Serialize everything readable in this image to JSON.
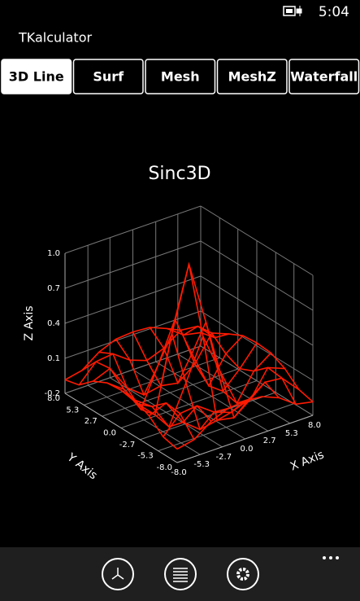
{
  "status": {
    "time": "5:04"
  },
  "app": {
    "title": "TKalculator"
  },
  "tabs": [
    "3D Line",
    "Surf",
    "Mesh",
    "MeshZ",
    "Waterfall"
  ],
  "chart_data": {
    "type": "surface-mesh",
    "title": "Sinc3D",
    "xlabel": "X Axis",
    "ylabel": "Y Axis",
    "zlabel": "Z Axis",
    "color": "#ff1a00",
    "x": [
      -8,
      -6,
      -4,
      -2,
      0,
      2,
      4,
      6,
      8
    ],
    "y": [
      -8,
      -6,
      -4,
      -2,
      0,
      2,
      4,
      6,
      8
    ],
    "z": [
      [
        -0.084,
        -0.054,
        0.052,
        0.112,
        0.124,
        0.112,
        0.052,
        -0.054,
        -0.084
      ],
      [
        -0.054,
        0.095,
        0.111,
        0.007,
        -0.047,
        0.007,
        0.111,
        0.095,
        -0.054
      ],
      [
        0.052,
        0.111,
        -0.104,
        -0.217,
        -0.189,
        -0.217,
        -0.104,
        0.111,
        0.052
      ],
      [
        0.112,
        0.007,
        -0.217,
        0.109,
        0.455,
        0.109,
        -0.217,
        0.007,
        0.112
      ],
      [
        0.124,
        -0.047,
        -0.189,
        0.455,
        1,
        0.455,
        -0.189,
        -0.047,
        0.124
      ],
      [
        0.112,
        0.007,
        -0.217,
        0.109,
        0.455,
        0.109,
        -0.217,
        0.007,
        0.112
      ],
      [
        0.052,
        0.111,
        -0.104,
        -0.217,
        -0.189,
        -0.217,
        -0.104,
        0.111,
        0.052
      ],
      [
        -0.054,
        0.095,
        0.111,
        0.007,
        -0.047,
        0.007,
        0.111,
        0.095,
        -0.054
      ],
      [
        -0.084,
        -0.054,
        0.052,
        0.112,
        0.124,
        0.112,
        0.052,
        -0.054,
        -0.084
      ]
    ],
    "xlim": [
      -8,
      8
    ],
    "ylim": [
      -8,
      8
    ],
    "zlim": [
      -0.2,
      1.0
    ],
    "xticks": [
      {
        "value": -8,
        "label": "-8.0"
      },
      {
        "value": -5.3,
        "label": "-5.3"
      },
      {
        "value": -2.7,
        "label": "-2.7"
      },
      {
        "value": 0,
        "label": "0.0"
      },
      {
        "value": 2.7,
        "label": "2.7"
      },
      {
        "value": 5.3,
        "label": "5.3"
      },
      {
        "value": 8,
        "label": "8.0"
      }
    ],
    "yticks": [
      {
        "value": -8,
        "label": "-8.0"
      },
      {
        "value": -5.3,
        "label": "-5.3"
      },
      {
        "value": -2.7,
        "label": "-2.7"
      },
      {
        "value": 0,
        "label": "0.0"
      },
      {
        "value": 2.7,
        "label": "2.7"
      },
      {
        "value": 5.3,
        "label": "5.3"
      },
      {
        "value": 8,
        "label": "8.0"
      }
    ],
    "zticks": [
      {
        "value": -0.2,
        "label": "-0.2"
      },
      {
        "value": 0.1,
        "label": "0.1"
      },
      {
        "value": 0.4,
        "label": "0.4"
      },
      {
        "value": 0.7,
        "label": "0.7"
      },
      {
        "value": 1.0,
        "label": "1.0"
      }
    ],
    "grid": true
  }
}
